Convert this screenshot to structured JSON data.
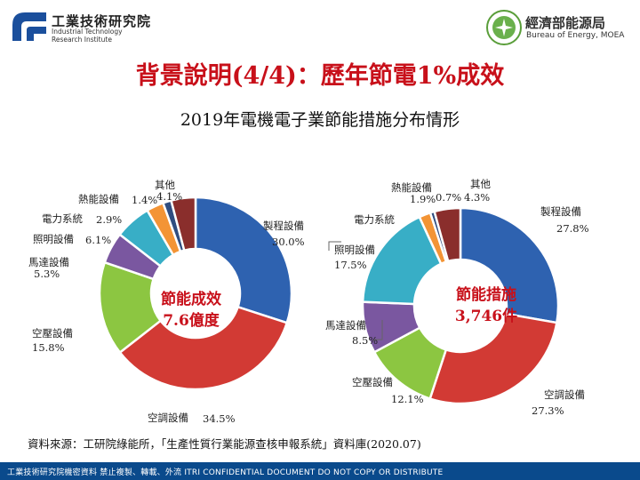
{
  "header": {
    "org_name": "工業技術研究院",
    "org_en_1": "Industrial Technology",
    "org_en_2": "Research Institute",
    "boe_name": "經濟部能源局",
    "boe_en": "Bureau of Energy, MOEA"
  },
  "main_title": "背景說明(4/4)：歷年節電1%成效",
  "subtitle": "2019年電機電子業節能措施分布情形",
  "colors": {
    "title_red": "#c8101a",
    "footer_blue": "#0a4a8c",
    "process": "#2e62b0",
    "aircon": "#d23a34",
    "aircomp": "#8cc641",
    "motor": "#7a57a0",
    "lighting": "#38aec6",
    "power": "#f39435",
    "heat": "#2f4d80",
    "other": "#8a2e2c"
  },
  "chart_data": [
    {
      "type": "pie",
      "title": "節能成效",
      "center_value": "7.6億度",
      "categories": [
        "製程設備",
        "空調設備",
        "空壓設備",
        "馬達設備",
        "照明設備",
        "電力系統",
        "熱能設備",
        "其他"
      ],
      "values": [
        30.0,
        34.5,
        15.8,
        5.3,
        6.1,
        2.9,
        1.4,
        4.1
      ],
      "value_labels": [
        "30.0%",
        "34.5%",
        "15.8%",
        "5.3%",
        "6.1%",
        "2.9%",
        "1.4%",
        "4.1%"
      ]
    },
    {
      "type": "pie",
      "title": "節能措施",
      "center_value": "3,746件",
      "categories": [
        "製程設備",
        "空調設備",
        "空壓設備",
        "馬達設備",
        "照明設備",
        "電力系統",
        "熱能設備",
        "其他"
      ],
      "values": [
        27.8,
        27.3,
        12.1,
        8.5,
        17.5,
        1.9,
        0.7,
        4.3
      ],
      "value_labels": [
        "27.8%",
        "27.3%",
        "12.1%",
        "8.5%",
        "17.5%",
        "1.9%",
        "0.7%",
        "4.3%"
      ]
    }
  ],
  "source_note": "資料來源：工研院綠能所，「生產性質行業能源查核申報系統」資料庫(2020.07)",
  "footer": {
    "text": "工業技術研究院機密資料 禁止複製、轉載、外流 ITRI CONFIDENTIAL DOCUMENT DO NOT COPY OR DISTRIBUTE"
  }
}
